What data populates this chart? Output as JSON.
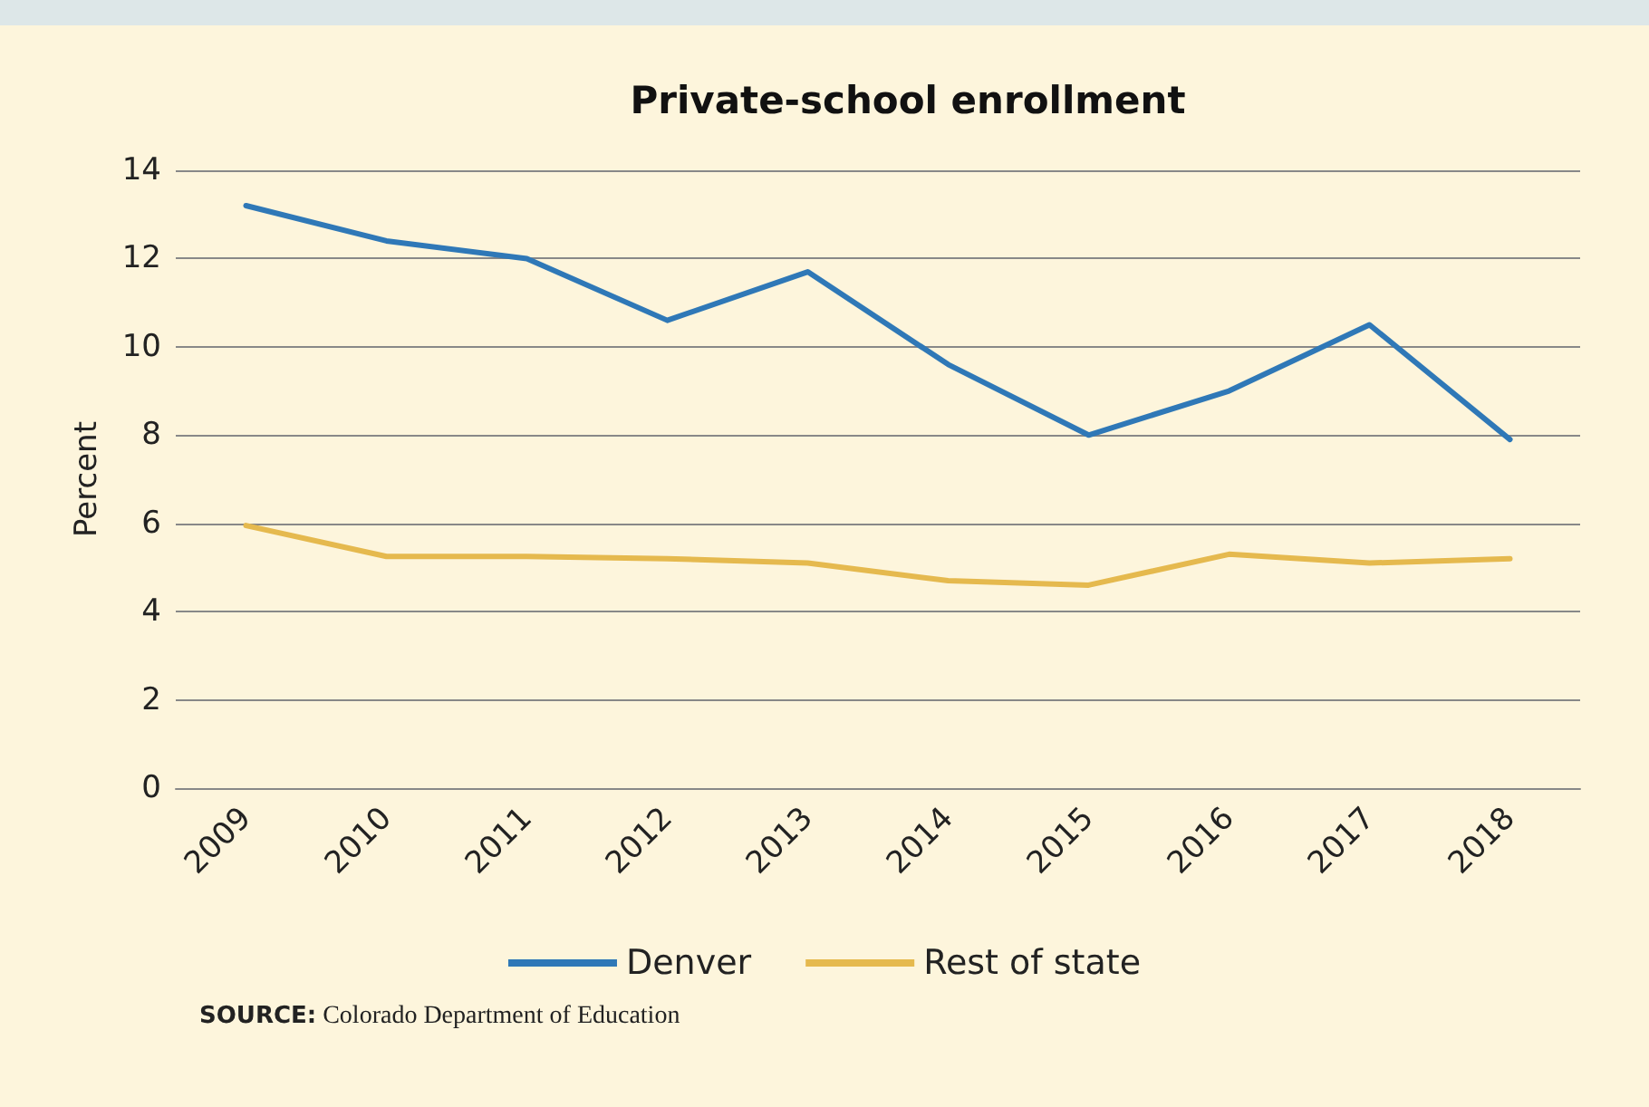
{
  "chart_data": {
    "type": "line",
    "title": "Private-school enrollment",
    "ylabel": "Percent",
    "categories": [
      "2009",
      "2010",
      "2011",
      "2012",
      "2013",
      "2014",
      "2015",
      "2016",
      "2017",
      "2018"
    ],
    "series": [
      {
        "name": "Denver",
        "color": "#2f78b7",
        "values": [
          13.2,
          12.4,
          12.0,
          10.6,
          11.7,
          9.6,
          8.0,
          9.0,
          10.5,
          7.9
        ]
      },
      {
        "name": "Rest of state",
        "color": "#e5b94e",
        "values": [
          5.95,
          5.25,
          5.25,
          5.2,
          5.1,
          4.7,
          4.6,
          5.3,
          5.1,
          5.2
        ]
      }
    ],
    "ylim": [
      0,
      14
    ],
    "yticks": [
      0,
      2,
      4,
      6,
      8,
      10,
      12,
      14
    ],
    "grid": "y",
    "legend": "bottom",
    "marker": "none",
    "line_style": "solid",
    "annotations": [
      "SOURCE: Colorado Department of Education"
    ]
  }
}
